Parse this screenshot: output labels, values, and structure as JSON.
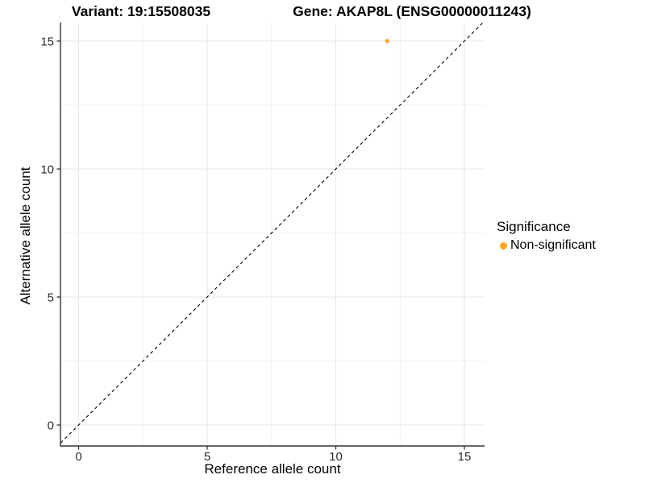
{
  "titles": {
    "variant": "Variant: 19:15508035",
    "gene": "Gene: AKAP8L (ENSG00000011243)"
  },
  "axes": {
    "x": {
      "label": "Reference allele count",
      "ticks": [
        "0",
        "5",
        "10",
        "15"
      ]
    },
    "y": {
      "label": "Alternative allele count",
      "ticks": [
        "0",
        "5",
        "10",
        "15"
      ]
    }
  },
  "legend": {
    "title": "Significance",
    "items": [
      {
        "label": "Non-significant",
        "color": "#FFA421",
        "marker": "dot-icon"
      }
    ]
  },
  "colors": {
    "point_orange": "#FFA421",
    "grid_major": "#e7e7e7",
    "grid_minor": "#f1f1f1",
    "axis_line": "#333333",
    "tick_label": "#2b2b2b",
    "dashed_line": "#000000",
    "background": "#ffffff"
  },
  "chart_data": {
    "type": "scatter",
    "title": "Variant: 19:15508035   Gene: AKAP8L (ENSG00000011243)",
    "xlabel": "Reference allele count",
    "ylabel": "Alternative allele count",
    "xlim": [
      -0.7,
      15.8
    ],
    "ylim": [
      -0.8,
      15.7
    ],
    "x_major_ticks": [
      0,
      5,
      10,
      15
    ],
    "y_major_ticks": [
      0,
      5,
      10,
      15
    ],
    "x_minor_ticks": [
      2.5,
      7.5,
      12.5
    ],
    "y_minor_ticks": [
      2.5,
      7.5,
      12.5
    ],
    "grid": true,
    "legend_position": "right",
    "series": [
      {
        "name": "Non-significant",
        "color": "#FFA421",
        "points": [
          {
            "x": 12,
            "y": 15
          }
        ]
      }
    ],
    "reference_line": {
      "type": "identity",
      "equation": "y = x",
      "style": "dashed",
      "color": "#000000"
    }
  }
}
